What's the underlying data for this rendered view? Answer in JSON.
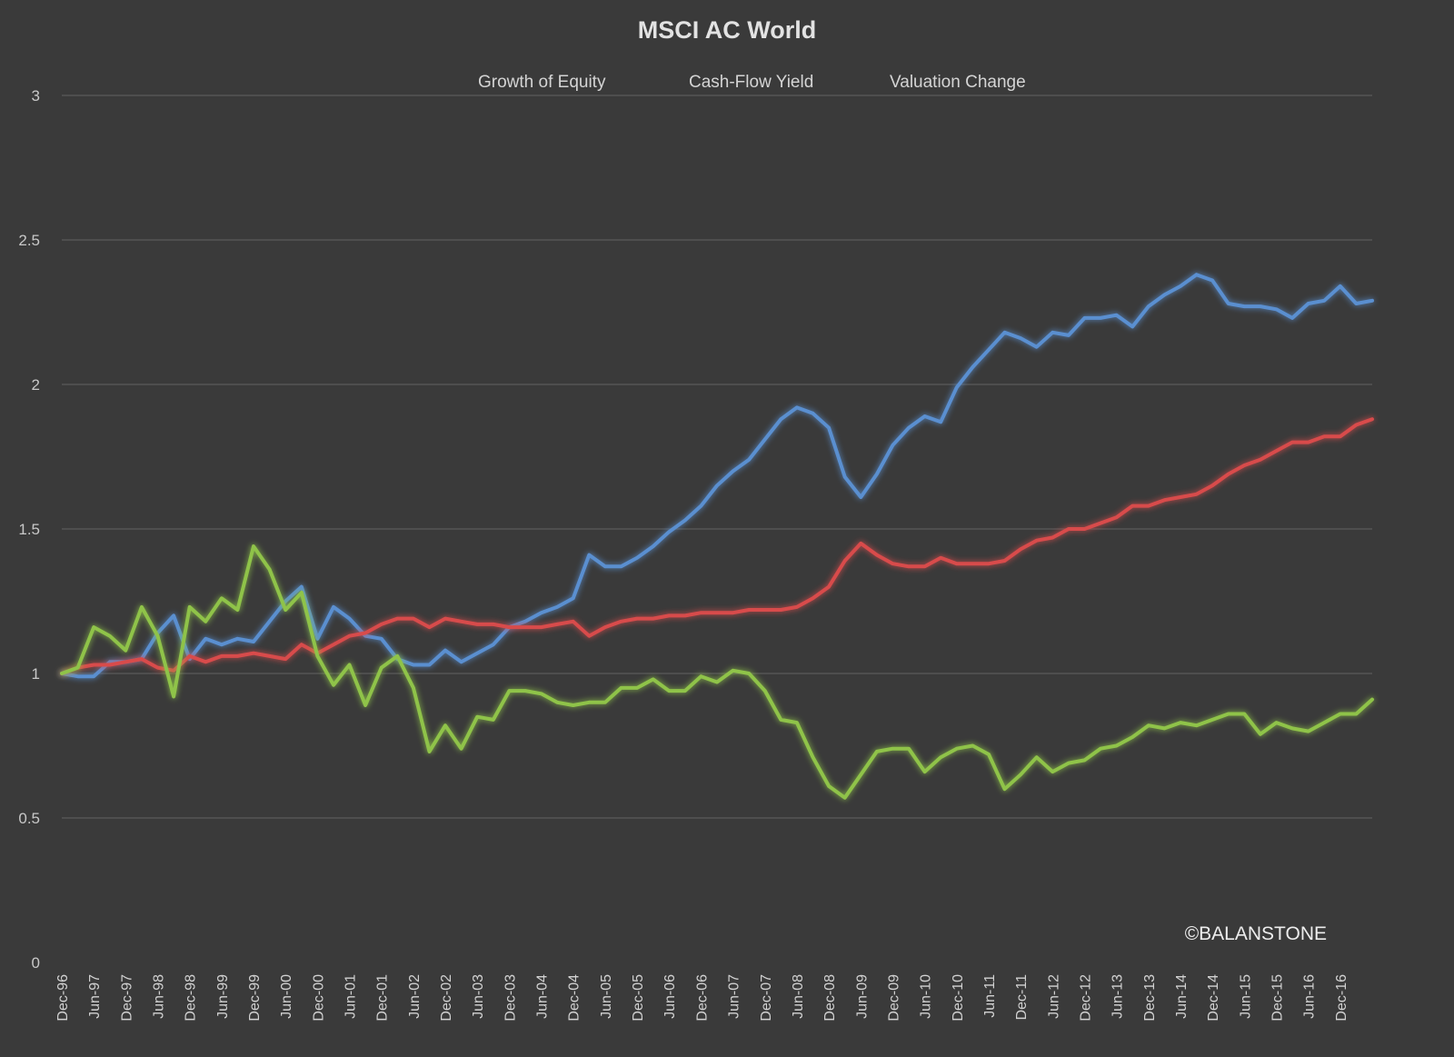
{
  "chart_data": {
    "type": "line",
    "title": "MSCI AC World",
    "xlabel": "",
    "ylabel": "",
    "ylim": [
      0,
      3
    ],
    "yticks": [
      "0",
      "0.5",
      "1",
      "1.5",
      "2",
      "2.5",
      "3"
    ],
    "yticks_values": [
      0,
      0.5,
      1,
      1.5,
      2,
      2.5,
      3
    ],
    "grid": true,
    "legend_position": "top-center",
    "background": "#3a3a3a",
    "x": [
      "Dec-96",
      "Mar-97",
      "Jun-97",
      "Sep-97",
      "Dec-97",
      "Mar-98",
      "Jun-98",
      "Sep-98",
      "Dec-98",
      "Mar-99",
      "Jun-99",
      "Sep-99",
      "Dec-99",
      "Mar-00",
      "Jun-00",
      "Sep-00",
      "Dec-00",
      "Mar-01",
      "Jun-01",
      "Sep-01",
      "Dec-01",
      "Mar-02",
      "Jun-02",
      "Sep-02",
      "Dec-02",
      "Mar-03",
      "Jun-03",
      "Sep-03",
      "Dec-03",
      "Mar-04",
      "Jun-04",
      "Sep-04",
      "Dec-04",
      "Mar-05",
      "Jun-05",
      "Sep-05",
      "Dec-05",
      "Mar-06",
      "Jun-06",
      "Sep-06",
      "Dec-06",
      "Mar-07",
      "Jun-07",
      "Sep-07",
      "Dec-07",
      "Mar-08",
      "Jun-08",
      "Sep-08",
      "Dec-08",
      "Mar-09",
      "Jun-09",
      "Sep-09",
      "Dec-09",
      "Mar-10",
      "Jun-10",
      "Sep-10",
      "Dec-10",
      "Mar-11",
      "Jun-11",
      "Sep-11",
      "Dec-11",
      "Mar-12",
      "Jun-12",
      "Sep-12",
      "Dec-12",
      "Mar-13",
      "Jun-13",
      "Sep-13",
      "Dec-13",
      "Mar-14",
      "Jun-14",
      "Sep-14",
      "Dec-14",
      "Mar-15",
      "Jun-15",
      "Sep-15",
      "Dec-15",
      "Mar-16",
      "Jun-16",
      "Sep-16",
      "Dec-16",
      "Mar-17",
      "Jun-17"
    ],
    "xticks_shown": [
      "Dec-96",
      "Jun-97",
      "Dec-97",
      "Jun-98",
      "Dec-98",
      "Jun-99",
      "Dec-99",
      "Jun-00",
      "Dec-00",
      "Jun-01",
      "Dec-01",
      "Jun-02",
      "Dec-02",
      "Jun-03",
      "Dec-03",
      "Jun-04",
      "Dec-04",
      "Jun-05",
      "Dec-05",
      "Jun-06",
      "Dec-06",
      "Jun-07",
      "Dec-07",
      "Jun-08",
      "Dec-08",
      "Jun-09",
      "Dec-09",
      "Jun-10",
      "Dec-10",
      "Jun-11",
      "Dec-11",
      "Jun-12",
      "Dec-12",
      "Jun-13",
      "Dec-13",
      "Jun-14",
      "Dec-14",
      "Jun-15",
      "Dec-15",
      "Jun-16",
      "Dec-16"
    ],
    "series": [
      {
        "name": "Growth of Equity",
        "color": "#5a8fd0",
        "values": [
          1.0,
          0.99,
          0.99,
          1.04,
          1.04,
          1.05,
          1.14,
          1.2,
          1.05,
          1.12,
          1.1,
          1.12,
          1.11,
          1.18,
          1.25,
          1.3,
          1.12,
          1.23,
          1.19,
          1.13,
          1.12,
          1.05,
          1.03,
          1.03,
          1.08,
          1.04,
          1.07,
          1.1,
          1.16,
          1.18,
          1.21,
          1.23,
          1.26,
          1.41,
          1.37,
          1.37,
          1.4,
          1.44,
          1.49,
          1.53,
          1.58,
          1.65,
          1.7,
          1.74,
          1.81,
          1.88,
          1.92,
          1.9,
          1.85,
          1.68,
          1.61,
          1.69,
          1.79,
          1.85,
          1.89,
          1.87,
          1.99,
          2.06,
          2.12,
          2.18,
          2.16,
          2.13,
          2.18,
          2.17,
          2.23,
          2.23,
          2.24,
          2.2,
          2.27,
          2.31,
          2.34,
          2.38,
          2.36,
          2.28,
          2.27,
          2.27,
          2.26,
          2.23,
          2.28,
          2.29,
          2.34,
          2.28,
          2.29
        ]
      },
      {
        "name": "Cash-Flow Yield",
        "color": "#d84b4b",
        "values": [
          1.0,
          1.02,
          1.03,
          1.03,
          1.04,
          1.05,
          1.02,
          1.01,
          1.06,
          1.04,
          1.06,
          1.06,
          1.07,
          1.06,
          1.05,
          1.1,
          1.07,
          1.1,
          1.13,
          1.14,
          1.17,
          1.19,
          1.19,
          1.16,
          1.19,
          1.18,
          1.17,
          1.17,
          1.16,
          1.16,
          1.16,
          1.17,
          1.18,
          1.13,
          1.16,
          1.18,
          1.19,
          1.19,
          1.2,
          1.2,
          1.21,
          1.21,
          1.21,
          1.22,
          1.22,
          1.22,
          1.23,
          1.26,
          1.3,
          1.39,
          1.45,
          1.41,
          1.38,
          1.37,
          1.37,
          1.4,
          1.38,
          1.38,
          1.38,
          1.39,
          1.43,
          1.46,
          1.47,
          1.5,
          1.5,
          1.52,
          1.54,
          1.58,
          1.58,
          1.6,
          1.61,
          1.62,
          1.65,
          1.69,
          1.72,
          1.74,
          1.77,
          1.8,
          1.8,
          1.82,
          1.82,
          1.86,
          1.88
        ]
      },
      {
        "name": "Valuation Change",
        "color": "#8fc348",
        "values": [
          1.0,
          1.02,
          1.16,
          1.13,
          1.08,
          1.23,
          1.13,
          0.92,
          1.23,
          1.18,
          1.26,
          1.22,
          1.44,
          1.36,
          1.22,
          1.28,
          1.06,
          0.96,
          1.03,
          0.89,
          1.02,
          1.06,
          0.95,
          0.73,
          0.82,
          0.74,
          0.85,
          0.84,
          0.94,
          0.94,
          0.93,
          0.9,
          0.89,
          0.9,
          0.9,
          0.95,
          0.95,
          0.98,
          0.94,
          0.94,
          0.99,
          0.97,
          1.01,
          1.0,
          0.94,
          0.84,
          0.83,
          0.71,
          0.61,
          0.57,
          0.65,
          0.73,
          0.74,
          0.74,
          0.66,
          0.71,
          0.74,
          0.75,
          0.72,
          0.6,
          0.65,
          0.71,
          0.66,
          0.69,
          0.7,
          0.74,
          0.75,
          0.78,
          0.82,
          0.81,
          0.83,
          0.82,
          0.84,
          0.86,
          0.86,
          0.79,
          0.83,
          0.81,
          0.8,
          0.83,
          0.86,
          0.86,
          0.91
        ]
      }
    ]
  },
  "watermark": "©BALANSTONE"
}
